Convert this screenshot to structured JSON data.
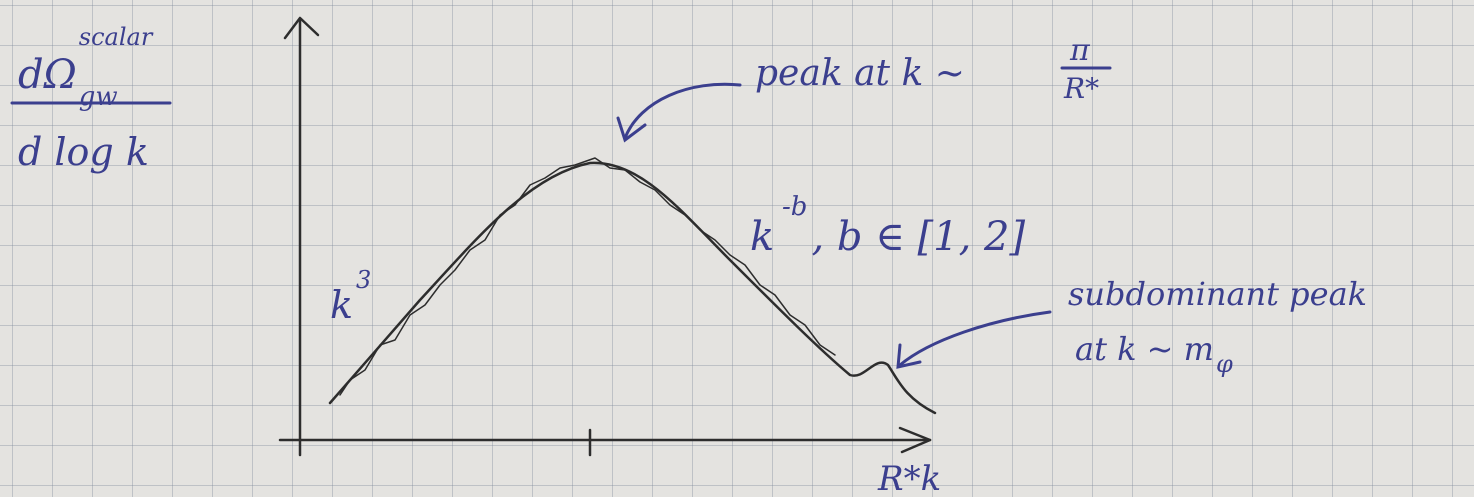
{
  "y_axis_label": {
    "numerator": "dΩ",
    "subscript": "gw",
    "superscript": "scalar",
    "denominator": "d log k"
  },
  "x_axis_label": "R*k",
  "annotations": {
    "low_k": {
      "base": "k",
      "exponent": "3"
    },
    "high_k": {
      "base": "k",
      "exponent": "-b",
      "condition": ", b ∈ [1, 2]"
    },
    "peak": {
      "text": "peak at k ~",
      "fraction_numerator": "π",
      "fraction_denominator": "R*"
    },
    "subdominant": {
      "line1": "subdominant peak",
      "line2": "at k ~ m",
      "line2_subscript": "φ"
    }
  }
}
